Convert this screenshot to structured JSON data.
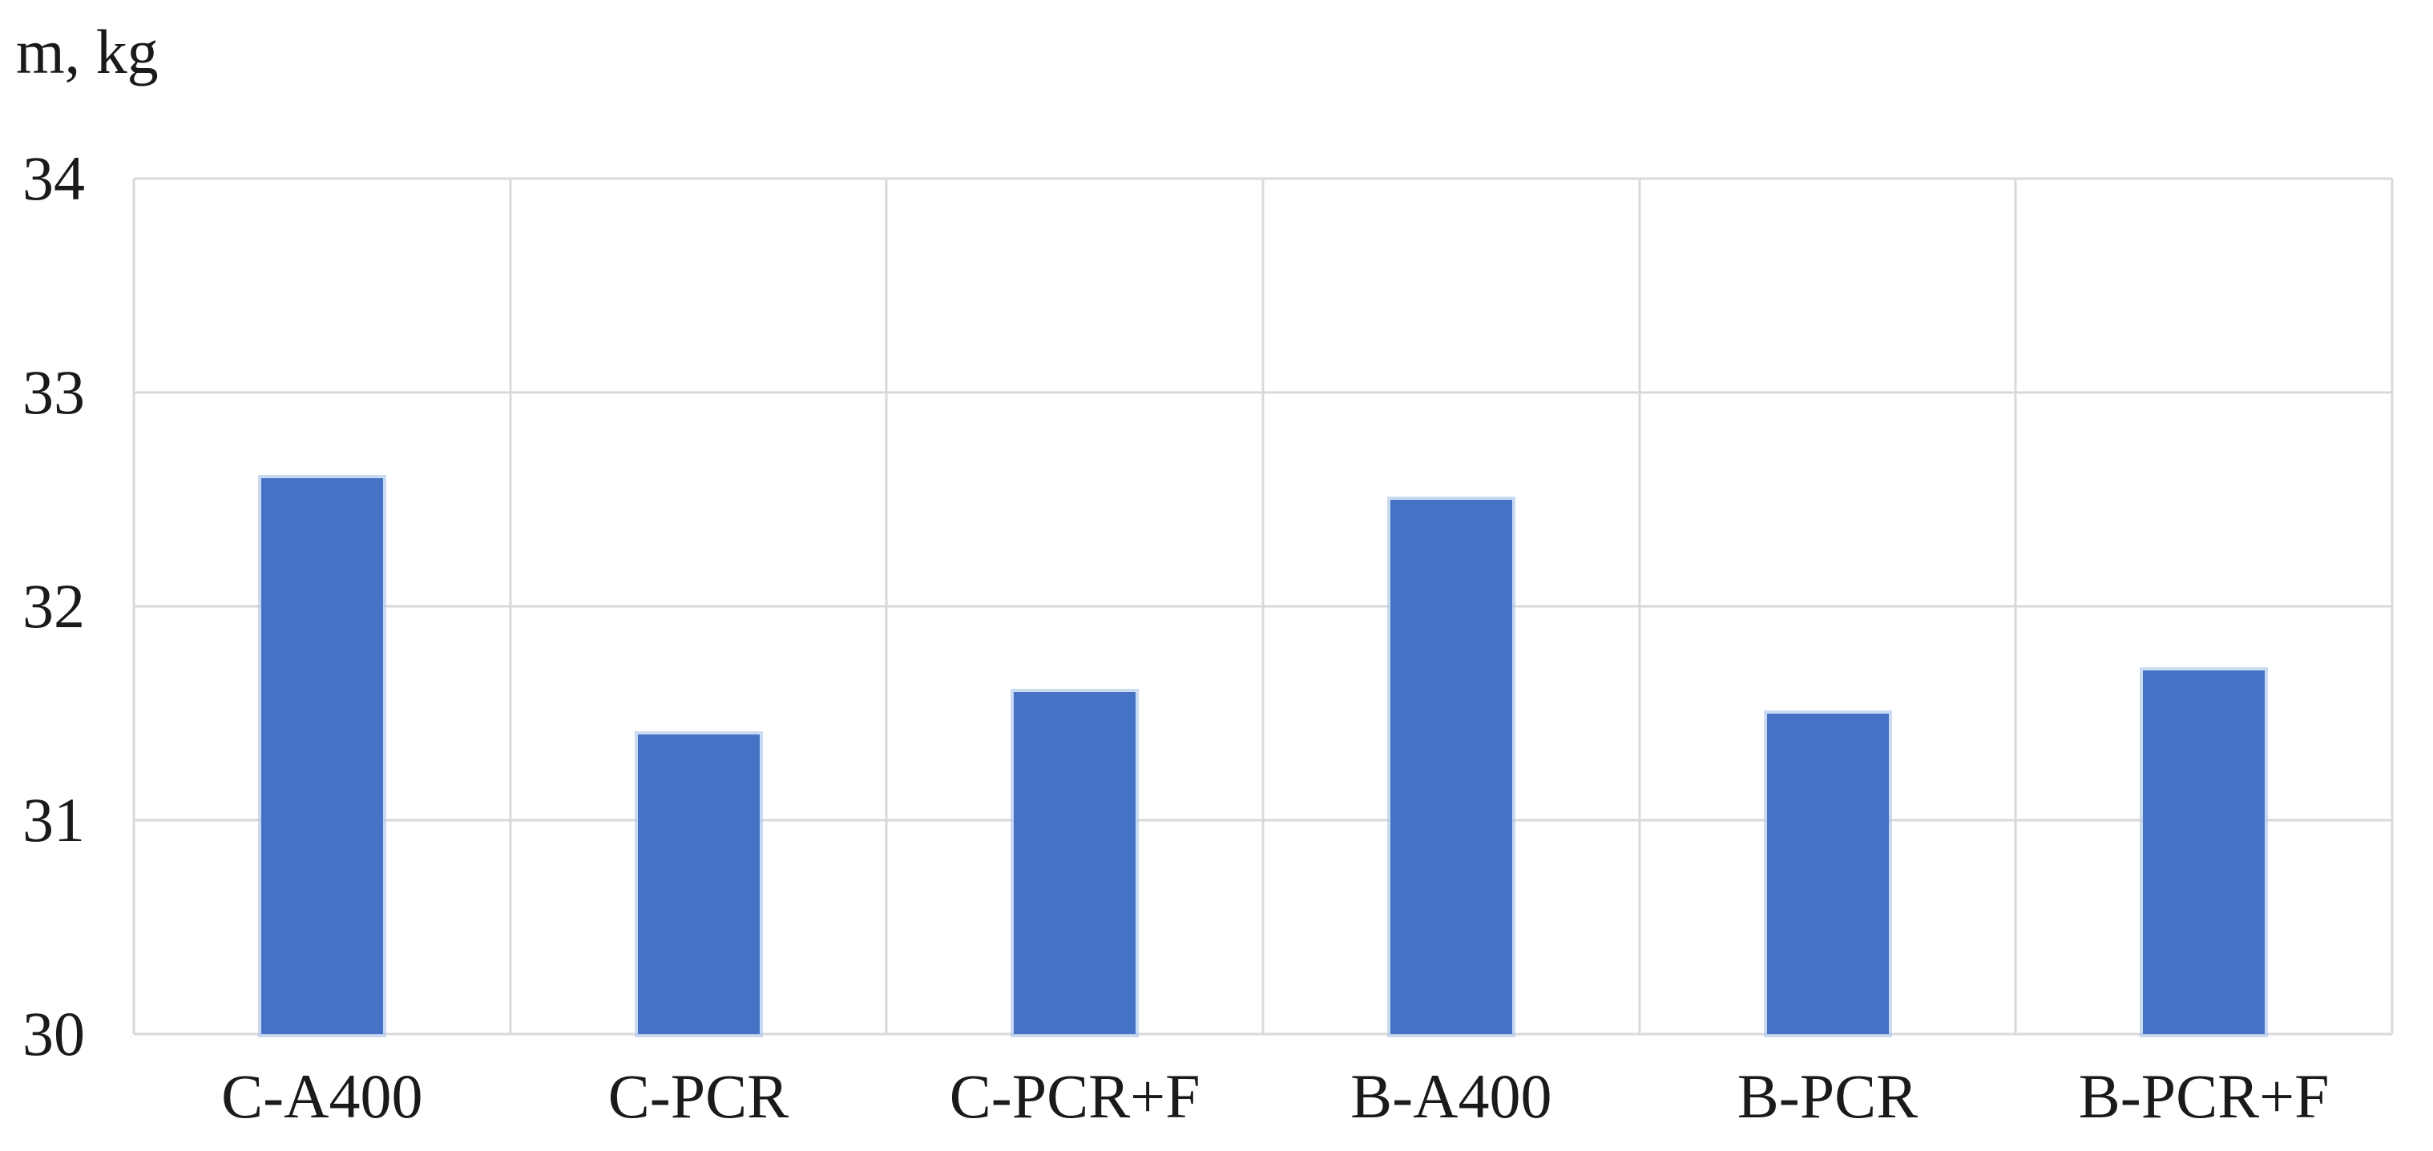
{
  "chart_data": {
    "type": "bar",
    "title": "",
    "ylabel": "m, kg",
    "xlabel": "",
    "categories": [
      "C-A400",
      "C-PCR",
      "C-PCR+F",
      "B-A400",
      "B-PCR",
      "B-PCR+F"
    ],
    "values": [
      32.6,
      31.4,
      31.6,
      32.5,
      31.5,
      31.7
    ],
    "ylim": [
      30,
      34
    ],
    "yticks": [
      34,
      33,
      32,
      31,
      30
    ],
    "grid": "both",
    "legend": "none",
    "bar_color": "#4472C4",
    "gridline_color": "#d9d9d9",
    "text_color": "#1a1a1a",
    "background_color": "#ffffff"
  }
}
